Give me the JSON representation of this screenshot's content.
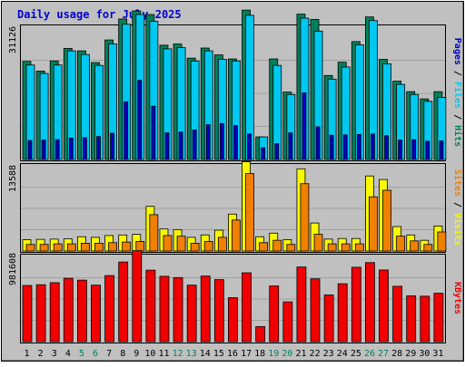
{
  "chart_data": {
    "type": "bar",
    "title": "Daily usage for July 2025",
    "categories": [
      "1",
      "2",
      "3",
      "4",
      "5",
      "6",
      "7",
      "8",
      "9",
      "10",
      "11",
      "12",
      "13",
      "14",
      "15",
      "16",
      "17",
      "18",
      "19",
      "20",
      "21",
      "22",
      "23",
      "24",
      "25",
      "26",
      "27",
      "28",
      "29",
      "30",
      "31"
    ],
    "weekend_days": [
      "5",
      "6",
      "12",
      "13",
      "19",
      "20",
      "26",
      "27"
    ],
    "panels": [
      {
        "id": "pages-files-hits",
        "ylabel_parts": [
          "Pages",
          "Files",
          "Hits"
        ],
        "ytick": 31126,
        "series": [
          {
            "name": "Hits",
            "color": "#00805c",
            "values": [
              24300,
              21900,
              24400,
              27500,
              26900,
              24000,
              29600,
              34800,
              36800,
              35900,
              28300,
              28600,
              25100,
              27600,
              25900,
              24900,
              37000,
              5600,
              24900,
              16700,
              36000,
              34700,
              20800,
              24100,
              29200,
              35300,
              24800,
              19400,
              16800,
              15000,
              16800
            ]
          },
          {
            "name": "Files",
            "color": "#00c8f0",
            "values": [
              23400,
              21300,
              23400,
              26900,
              26000,
              23300,
              28600,
              33500,
              35900,
              34200,
              27400,
              27700,
              24400,
              26900,
              24800,
              24400,
              35700,
              5600,
              23300,
              16100,
              35000,
              31800,
              19900,
              22900,
              28400,
              34400,
              23700,
              18600,
              16100,
              14400,
              15400
            ]
          },
          {
            "name": "Pages",
            "color": "#0000c0",
            "values": [
              4700,
              4800,
              4900,
              5300,
              5400,
              5700,
              6500,
              14300,
              19600,
              13200,
              6600,
              6800,
              7300,
              8600,
              8900,
              8400,
              6300,
              2900,
              3900,
              6600,
              16500,
              8100,
              6000,
              6100,
              6200,
              6300,
              5900,
              4800,
              4900,
              4500,
              4600
            ]
          }
        ]
      },
      {
        "id": "sites-visits",
        "ylabel_parts": [
          "Sites",
          "Visits"
        ],
        "ytick": 13588,
        "series": [
          {
            "name": "Visits",
            "color": "#f8f800",
            "values": [
              1900,
              1950,
              2000,
              2050,
              2400,
              2300,
              2600,
              2700,
              2800,
              7500,
              3700,
              3600,
              2300,
              2700,
              3500,
              6200,
              15000,
              2400,
              3000,
              1900,
              13800,
              4700,
              2000,
              2100,
              2100,
              12600,
              12000,
              4100,
              2700,
              1800,
              4200
            ]
          },
          {
            "name": "Sites",
            "color": "#f08000",
            "values": [
              1100,
              1100,
              1200,
              1200,
              1300,
              1300,
              1400,
              1500,
              1600,
              6100,
              2600,
              2500,
              1300,
              1600,
              2300,
              5200,
              13000,
              1400,
              1800,
              1100,
              11300,
              2800,
              1200,
              1200,
              1200,
              9100,
              10200,
              2500,
              1700,
              1100,
              3200
            ]
          }
        ]
      },
      {
        "id": "kbytes",
        "ylabel_parts": [
          "KBytes"
        ],
        "ytick": 981608,
        "series": [
          {
            "name": "KBytes",
            "color": "#f00000",
            "values": [
              681000,
              690000,
              715000,
              768000,
              746000,
              685000,
              801000,
              966000,
              1103000,
              867000,
              792000,
              777000,
              685000,
              795000,
              752000,
              533000,
              835000,
              182000,
              675000,
              482000,
              905000,
              762000,
              566000,
              702000,
              902000,
              959000,
              869000,
              671000,
              555000,
              551000,
              587000
            ]
          }
        ]
      }
    ]
  }
}
